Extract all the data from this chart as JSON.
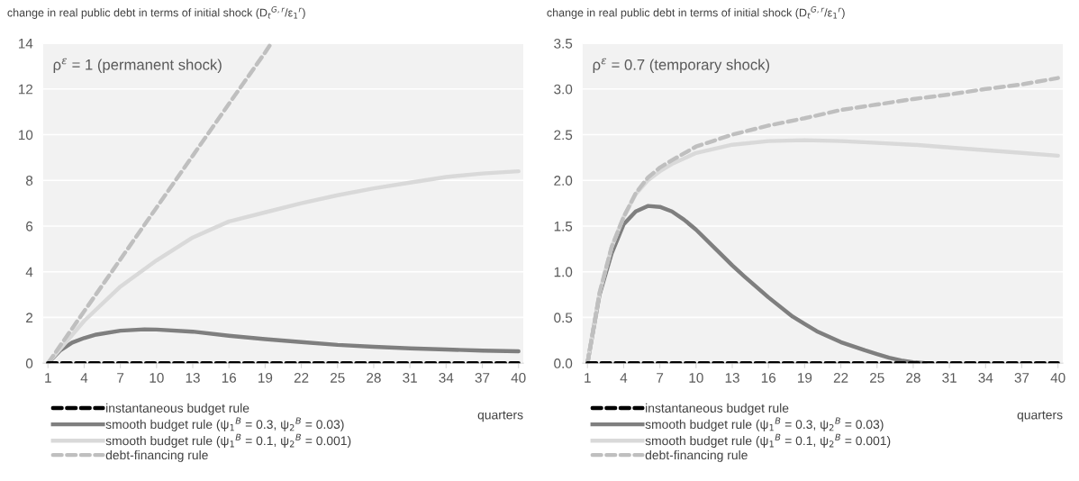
{
  "chart_data": [
    {
      "type": "line",
      "title": "change in real public debt in terms of initial shock (D$_{t}$$^{G,r}$/ε$_{1}$$^{r}$)",
      "xlabel": "quarters",
      "annotations": [
        "ρ$^{ε}$ = 1 (permanent shock)"
      ],
      "xlim": [
        0.6,
        40.4
      ],
      "xticks": [
        1,
        4,
        7,
        10,
        13,
        16,
        19,
        22,
        25,
        28,
        31,
        34,
        37,
        40
      ],
      "ylim": [
        0,
        14
      ],
      "yticks": [
        0,
        2,
        4,
        6,
        8,
        10,
        12,
        14
      ],
      "grid": "y",
      "legend": "bottom",
      "series": [
        {
          "name": "instantaneous budget rule",
          "color": "#000000",
          "line_style": "dashed",
          "x": [
            1,
            40
          ],
          "values": [
            0,
            0
          ]
        },
        {
          "name": "smooth budget rule (ψ$_{1}$$^{B}$ = 0.3, ψ$_{2}$$^{B}$ = 0.03)",
          "color": "#7f7f7f",
          "line_style": "solid",
          "x": [
            1,
            2,
            3,
            4,
            5,
            7,
            9,
            10,
            13,
            16,
            19,
            22,
            25,
            28,
            31,
            34,
            37,
            40
          ],
          "values": [
            0,
            0.55,
            0.9,
            1.1,
            1.25,
            1.42,
            1.48,
            1.47,
            1.38,
            1.2,
            1.05,
            0.92,
            0.8,
            0.72,
            0.65,
            0.6,
            0.55,
            0.52
          ]
        },
        {
          "name": "smooth budget rule (ψ$_{1}$$^{B}$ = 0.1, ψ$_{2}$$^{B}$ = 0.001)",
          "color": "#d9d9d9",
          "line_style": "solid",
          "x": [
            1,
            4,
            7,
            10,
            13,
            16,
            19,
            22,
            25,
            28,
            31,
            34,
            37,
            40
          ],
          "values": [
            0,
            1.85,
            3.35,
            4.5,
            5.5,
            6.2,
            6.6,
            7.0,
            7.35,
            7.65,
            7.9,
            8.15,
            8.3,
            8.4
          ]
        },
        {
          "name": "debt-financing rule",
          "color": "#bfbfbf",
          "line_style": "dashed",
          "x": [
            1,
            4,
            7,
            10,
            13,
            16,
            19,
            19.5
          ],
          "values": [
            0,
            2.27,
            4.54,
            6.81,
            9.08,
            11.35,
            13.6,
            14
          ]
        }
      ]
    },
    {
      "type": "line",
      "title": "change in real public debt in terms of initial shock (D$_{t}$$^{G,r}$/ε$_{1}$$^{r}$)",
      "xlabel": "quarters",
      "annotations": [
        "ρ$^{ε}$ = 0.7 (temporary shock)"
      ],
      "xlim": [
        0.6,
        40.4
      ],
      "xticks": [
        1,
        4,
        7,
        10,
        13,
        16,
        19,
        22,
        25,
        28,
        31,
        34,
        37,
        40
      ],
      "ylim": [
        0,
        3.5
      ],
      "yticks": [
        {
          "value": 0,
          "label": "0.0"
        },
        0.5,
        {
          "value": 1,
          "label": "1.0"
        },
        1.5,
        {
          "value": 2,
          "label": "2.0"
        },
        2.5,
        {
          "value": 3,
          "label": "3.0"
        },
        3.5
      ],
      "grid": "y",
      "legend": "bottom",
      "series": [
        {
          "name": "instantaneous budget rule",
          "color": "#000000",
          "line_style": "dashed",
          "x": [
            1,
            40
          ],
          "values": [
            0,
            0
          ]
        },
        {
          "name": "smooth budget rule (ψ$_{1}$$^{B}$ = 0.3, ψ$_{2}$$^{B}$ = 0.03)",
          "color": "#7f7f7f",
          "line_style": "solid",
          "x": [
            1,
            2,
            3,
            4,
            5,
            6,
            7,
            8,
            9,
            10,
            12,
            13,
            14,
            16,
            18,
            19,
            20,
            22,
            24,
            25,
            26,
            27,
            28,
            29
          ],
          "values": [
            0,
            0.75,
            1.2,
            1.52,
            1.66,
            1.72,
            1.71,
            1.66,
            1.57,
            1.46,
            1.2,
            1.07,
            0.95,
            0.72,
            0.51,
            0.43,
            0.35,
            0.23,
            0.14,
            0.1,
            0.06,
            0.03,
            0.01,
            0
          ]
        },
        {
          "name": "smooth budget rule (ψ$_{1}$$^{B}$ = 0.1, ψ$_{2}$$^{B}$ = 0.001)",
          "color": "#d9d9d9",
          "line_style": "solid",
          "x": [
            1,
            2,
            3,
            4,
            5,
            6,
            7,
            8,
            10,
            13,
            16,
            19,
            22,
            25,
            28,
            31,
            34,
            37,
            40
          ],
          "values": [
            0,
            0.77,
            1.27,
            1.6,
            1.85,
            2.0,
            2.1,
            2.18,
            2.3,
            2.39,
            2.43,
            2.44,
            2.43,
            2.41,
            2.39,
            2.36,
            2.33,
            2.3,
            2.27
          ]
        },
        {
          "name": "debt-financing rule",
          "color": "#bfbfbf",
          "line_style": "dashed",
          "x": [
            1,
            2,
            3,
            4,
            5,
            6,
            7,
            8,
            10,
            13,
            16,
            19,
            22,
            25,
            28,
            31,
            34,
            37,
            40
          ],
          "values": [
            0,
            0.77,
            1.27,
            1.6,
            1.86,
            2.03,
            2.14,
            2.22,
            2.37,
            2.5,
            2.6,
            2.68,
            2.77,
            2.83,
            2.89,
            2.94,
            3.0,
            3.05,
            3.12
          ]
        }
      ]
    }
  ]
}
